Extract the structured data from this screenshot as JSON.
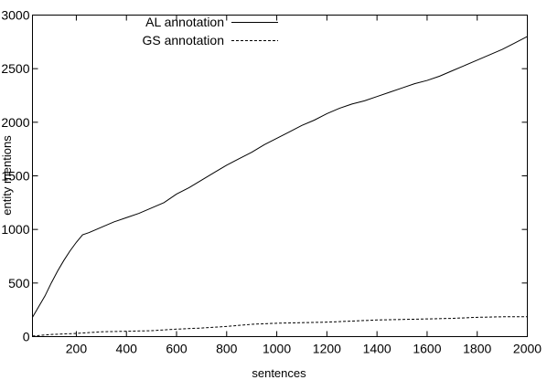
{
  "chart_data": {
    "type": "line",
    "title": "",
    "xlabel": "sentences",
    "ylabel": "entity mentions",
    "xlim": [
      25,
      2000
    ],
    "ylim": [
      0,
      3000
    ],
    "x_ticks": [
      200,
      400,
      600,
      800,
      1000,
      1200,
      1400,
      1600,
      1800,
      2000
    ],
    "y_ticks": [
      0,
      500,
      1000,
      1500,
      2000,
      2500,
      3000
    ],
    "grid": false,
    "legend_position": "top-left",
    "series": [
      {
        "name": "AL annotation",
        "style": "solid",
        "color": "#000000",
        "x": [
          25,
          50,
          75,
          100,
          125,
          150,
          175,
          200,
          225,
          250,
          300,
          350,
          400,
          450,
          500,
          550,
          600,
          650,
          700,
          750,
          800,
          850,
          900,
          950,
          1000,
          1050,
          1100,
          1150,
          1200,
          1250,
          1300,
          1350,
          1400,
          1450,
          1500,
          1550,
          1600,
          1650,
          1700,
          1750,
          1800,
          1850,
          1900,
          1950,
          2000
        ],
        "y": [
          180,
          280,
          380,
          500,
          610,
          710,
          800,
          880,
          950,
          970,
          1020,
          1070,
          1110,
          1150,
          1200,
          1250,
          1330,
          1390,
          1460,
          1530,
          1600,
          1660,
          1720,
          1790,
          1850,
          1910,
          1970,
          2020,
          2080,
          2130,
          2170,
          2200,
          2240,
          2280,
          2320,
          2360,
          2390,
          2430,
          2480,
          2530,
          2580,
          2630,
          2680,
          2740,
          2800
        ]
      },
      {
        "name": "GS annotation",
        "style": "dashed",
        "color": "#000000",
        "x": [
          25,
          100,
          200,
          300,
          400,
          500,
          600,
          700,
          800,
          900,
          1000,
          1100,
          1200,
          1300,
          1400,
          1500,
          1600,
          1700,
          1800,
          1900,
          2000
        ],
        "y": [
          5,
          20,
          30,
          45,
          50,
          55,
          70,
          80,
          95,
          115,
          125,
          130,
          135,
          145,
          155,
          160,
          165,
          170,
          180,
          185,
          185
        ]
      }
    ]
  }
}
